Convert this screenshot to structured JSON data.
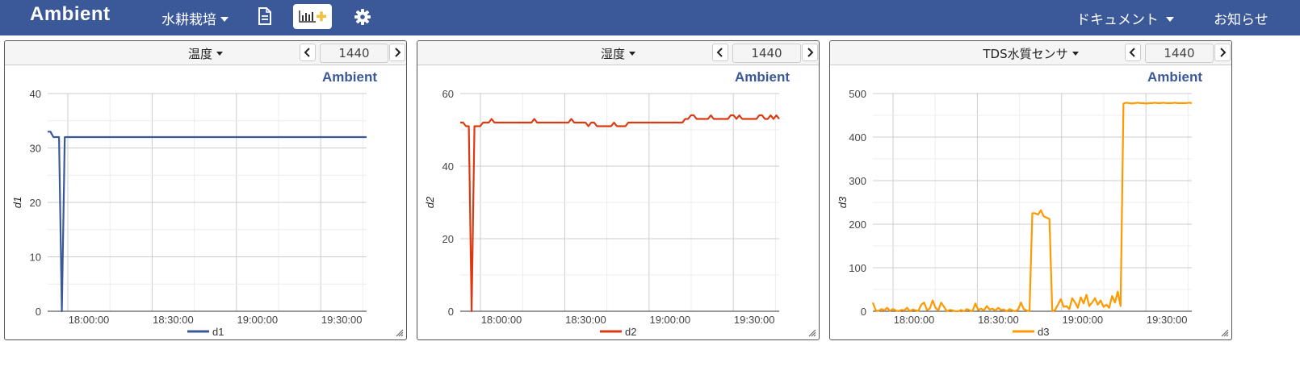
{
  "app": {
    "brand": "Ambient",
    "channel_menu": "水耕栽培",
    "docs_menu": "ドキュメント",
    "notice": "お知らせ",
    "icons": [
      "document-icon",
      "add-chart-icon",
      "gear-icon"
    ]
  },
  "charts": [
    {
      "title": "温度",
      "range_value": "1440",
      "watermark": "Ambient",
      "ylabel": "d1",
      "legend": "d1",
      "color": "#3b5998",
      "ylim": [
        0,
        40
      ],
      "yticks": [
        0,
        10,
        20,
        30,
        40
      ],
      "xticks": [
        "18:00:00",
        "18:30:00",
        "19:00:00",
        "19:30:00"
      ],
      "x": [
        0,
        1,
        2,
        3,
        4,
        5,
        6,
        7,
        8,
        9,
        10,
        11,
        12,
        13,
        14,
        15,
        16,
        17,
        18,
        19,
        20,
        21,
        22,
        23,
        24,
        25,
        26,
        27,
        28,
        29,
        30,
        31,
        32,
        33,
        34,
        35,
        36,
        37,
        38,
        39,
        40,
        41,
        42,
        43,
        44,
        45,
        46,
        47,
        48,
        49,
        50,
        51,
        52,
        53,
        54,
        55,
        56,
        57,
        58,
        59,
        60,
        61,
        62,
        63,
        64,
        65,
        66,
        67,
        68,
        69,
        70,
        71,
        72,
        73,
        74,
        75,
        76,
        77,
        78,
        79,
        80,
        81,
        82,
        83,
        84,
        85,
        86,
        87,
        88,
        89,
        90,
        91,
        92,
        93,
        94,
        95,
        96,
        97,
        98,
        99,
        100,
        101,
        102,
        103,
        104,
        105,
        106,
        107,
        108,
        109,
        110,
        111,
        112
      ],
      "y": [
        33,
        33,
        32,
        32,
        32,
        0,
        32,
        32,
        32,
        32,
        32,
        32,
        32,
        32,
        32,
        32,
        32,
        32,
        32,
        32,
        32,
        32,
        32,
        32,
        32,
        32,
        32,
        32,
        32,
        32,
        32,
        32,
        32,
        32,
        32,
        32,
        32,
        32,
        32,
        32,
        32,
        32,
        32,
        32,
        32,
        32,
        32,
        32,
        32,
        32,
        32,
        32,
        32,
        32,
        32,
        32,
        32,
        32,
        32,
        32,
        32,
        32,
        32,
        32,
        32,
        32,
        32,
        32,
        32,
        32,
        32,
        32,
        32,
        32,
        32,
        32,
        32,
        32,
        32,
        32,
        32,
        32,
        32,
        32,
        32,
        32,
        32,
        32,
        32,
        32,
        32,
        32,
        32,
        32,
        32,
        32,
        32,
        32,
        32,
        32,
        32,
        32,
        32,
        32,
        32,
        32,
        32,
        32,
        32,
        32,
        32,
        32,
        32
      ]
    },
    {
      "title": "湿度",
      "range_value": "1440",
      "watermark": "Ambient",
      "ylabel": "d2",
      "legend": "d2",
      "color": "#dc3912",
      "ylim": [
        0,
        60
      ],
      "yticks": [
        0,
        20,
        40,
        60
      ],
      "xticks": [
        "18:00:00",
        "18:30:00",
        "19:00:00",
        "19:30:00"
      ],
      "x": [
        0,
        1,
        2,
        3,
        4,
        5,
        6,
        7,
        8,
        9,
        10,
        11,
        12,
        13,
        14,
        15,
        16,
        17,
        18,
        19,
        20,
        21,
        22,
        23,
        24,
        25,
        26,
        27,
        28,
        29,
        30,
        31,
        32,
        33,
        34,
        35,
        36,
        37,
        38,
        39,
        40,
        41,
        42,
        43,
        44,
        45,
        46,
        47,
        48,
        49,
        50,
        51,
        52,
        53,
        54,
        55,
        56,
        57,
        58,
        59,
        60,
        61,
        62,
        63,
        64,
        65,
        66,
        67,
        68,
        69,
        70,
        71,
        72,
        73,
        74,
        75,
        76,
        77,
        78,
        79,
        80,
        81,
        82,
        83,
        84,
        85,
        86,
        87,
        88,
        89,
        90,
        91,
        92,
        93,
        94,
        95,
        96,
        97,
        98,
        99,
        100,
        101,
        102,
        103,
        104,
        105,
        106,
        107,
        108,
        109,
        110,
        111,
        112
      ],
      "y": [
        52,
        52,
        51,
        51,
        0,
        51,
        51,
        51,
        52,
        52,
        52,
        53,
        52,
        52,
        52,
        52,
        52,
        52,
        52,
        52,
        52,
        52,
        52,
        52,
        52,
        52,
        53,
        52,
        52,
        52,
        52,
        52,
        52,
        52,
        52,
        52,
        52,
        52,
        52,
        53,
        52,
        52,
        52,
        52,
        52,
        51,
        52,
        52,
        51,
        51,
        51,
        51,
        51,
        51,
        52,
        51,
        51,
        51,
        51,
        52,
        52,
        52,
        52,
        52,
        52,
        52,
        52,
        52,
        52,
        52,
        52,
        52,
        52,
        52,
        52,
        52,
        52,
        52,
        52,
        53,
        53,
        54,
        54,
        53,
        53,
        53,
        53,
        53,
        54,
        53,
        53,
        53,
        53,
        53,
        53,
        54,
        54,
        53,
        54,
        53,
        53,
        53,
        53,
        53,
        53,
        54,
        54,
        53,
        53,
        54,
        53,
        54,
        53
      ]
    },
    {
      "title": "TDS水質センサ",
      "range_value": "1440",
      "watermark": "Ambient",
      "ylabel": "d3",
      "legend": "d3",
      "color": "#ff9900",
      "ylim": [
        0,
        500
      ],
      "yticks": [
        0,
        100,
        200,
        300,
        400,
        500
      ],
      "xticks": [
        "18:00:00",
        "18:30:00",
        "19:00:00",
        "19:30:00"
      ],
      "x": [
        0,
        1,
        2,
        3,
        4,
        5,
        6,
        7,
        8,
        9,
        10,
        11,
        12,
        13,
        14,
        15,
        16,
        17,
        18,
        19,
        20,
        21,
        22,
        23,
        24,
        25,
        26,
        27,
        28,
        29,
        30,
        31,
        32,
        33,
        34,
        35,
        36,
        37,
        38,
        39,
        40,
        41,
        42,
        43,
        44,
        45,
        46,
        47,
        48,
        49,
        50,
        51,
        52,
        53,
        54,
        55,
        56,
        57,
        58,
        59,
        60,
        61,
        62,
        63,
        64,
        65,
        66,
        67,
        68,
        69,
        70,
        71,
        72,
        73,
        74,
        75,
        76,
        77,
        78,
        79,
        80,
        81,
        82,
        83,
        84,
        85,
        86,
        87,
        88,
        89,
        90,
        91,
        92,
        93,
        94,
        95,
        96,
        97,
        98,
        99,
        100,
        101,
        102,
        103,
        104,
        105,
        106,
        107,
        108,
        109,
        110,
        111,
        112
      ],
      "y": [
        20,
        2,
        1,
        5,
        2,
        8,
        1,
        5,
        2,
        0,
        3,
        2,
        8,
        0,
        4,
        2,
        1,
        15,
        20,
        3,
        6,
        25,
        8,
        2,
        20,
        10,
        0,
        3,
        2,
        0,
        0,
        3,
        0,
        5,
        2,
        0,
        18,
        3,
        6,
        2,
        12,
        4,
        6,
        2,
        8,
        3,
        4,
        0,
        5,
        2,
        0,
        4,
        20,
        5,
        2,
        0,
        225,
        225,
        222,
        232,
        218,
        215,
        212,
        0,
        3,
        15,
        28,
        10,
        12,
        5,
        30,
        20,
        8,
        32,
        18,
        38,
        12,
        20,
        30,
        15,
        25,
        10,
        15,
        8,
        35,
        20,
        45,
        12,
        477,
        479,
        478,
        477,
        478,
        479,
        478,
        478,
        477,
        478,
        478,
        479,
        478,
        478,
        479,
        478,
        478,
        478,
        479,
        478,
        478,
        478,
        478,
        479,
        478
      ]
    }
  ]
}
